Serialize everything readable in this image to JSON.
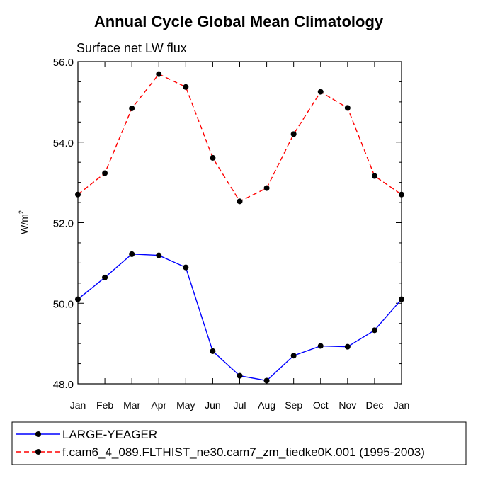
{
  "chart_data": {
    "type": "line",
    "title": "Annual Cycle Global Mean Climatology",
    "subtitle": "Surface net LW flux",
    "ylabel_base": "W/m",
    "ylabel_sup": "2",
    "xlabel": "",
    "categories": [
      "Jan",
      "Feb",
      "Mar",
      "Apr",
      "May",
      "Jun",
      "Jul",
      "Aug",
      "Sep",
      "Oct",
      "Nov",
      "Dec",
      "Jan"
    ],
    "ylim": [
      48.0,
      56.0
    ],
    "yticks": [
      48.0,
      50.0,
      52.0,
      54.0,
      56.0
    ],
    "ytick_labels": [
      "48.0",
      "50.0",
      "52.0",
      "54.0",
      "56.0"
    ],
    "series": [
      {
        "name": "LARGE-YEAGER",
        "color": "#0000ff",
        "dash": "solid",
        "values": [
          50.1,
          50.64,
          51.22,
          51.19,
          50.89,
          48.81,
          48.2,
          48.08,
          48.7,
          48.94,
          48.92,
          49.33,
          50.1
        ]
      },
      {
        "name": "f.cam6_4_089.FLTHIST_ne30.cam7_zm_tiedke0K.001 (1995-2003)",
        "color": "#ff0000",
        "dash": "dashed",
        "values": [
          52.7,
          53.23,
          54.84,
          55.69,
          55.37,
          53.61,
          52.53,
          52.86,
          54.2,
          55.25,
          54.85,
          53.16,
          52.7
        ]
      }
    ],
    "legend_position": "bottom"
  }
}
